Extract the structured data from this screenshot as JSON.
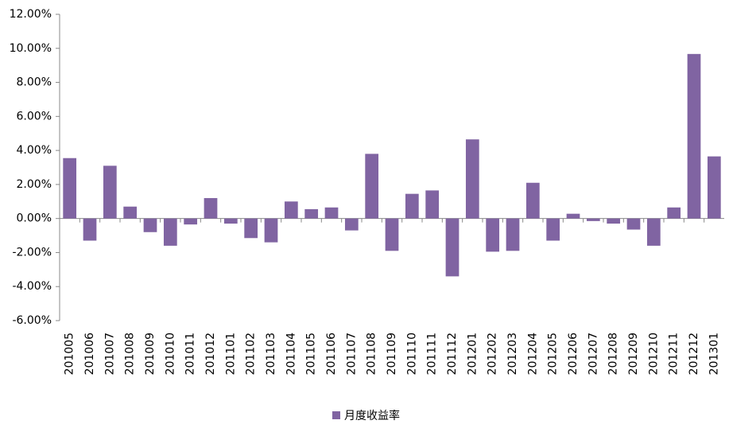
{
  "chart_data": {
    "type": "bar",
    "categories": [
      "201005",
      "201006",
      "201007",
      "201008",
      "201009",
      "201010",
      "201011",
      "201012",
      "201101",
      "201102",
      "201103",
      "201104",
      "201105",
      "201106",
      "201107",
      "201108",
      "201109",
      "201110",
      "201111",
      "201112",
      "201201",
      "201202",
      "201203",
      "201204",
      "201205",
      "201206",
      "201207",
      "201208",
      "201209",
      "201210",
      "201211",
      "201212",
      "201301"
    ],
    "series": [
      {
        "name": "月度收益率",
        "color": "#8064a2",
        "values": [
          3.55,
          -1.3,
          3.1,
          0.7,
          -0.8,
          -1.6,
          -0.35,
          1.2,
          -0.3,
          -1.15,
          -1.4,
          1.0,
          0.55,
          0.65,
          -0.7,
          3.8,
          -1.9,
          1.45,
          1.65,
          -3.4,
          4.65,
          -1.95,
          -1.9,
          2.1,
          -1.3,
          0.28,
          -0.15,
          -0.3,
          -0.65,
          -1.6,
          0.65,
          9.67,
          3.65
        ]
      }
    ],
    "ylim": [
      -6,
      12
    ],
    "yticks": [
      {
        "value": -6,
        "label": "-6.00%"
      },
      {
        "value": -4,
        "label": "-4.00%"
      },
      {
        "value": -2,
        "label": "-2.00%"
      },
      {
        "value": 0,
        "label": "0.00%"
      },
      {
        "value": 2,
        "label": "2.00%"
      },
      {
        "value": 4,
        "label": "4.00%"
      },
      {
        "value": 6,
        "label": "6.00%"
      },
      {
        "value": 8,
        "label": "8.00%"
      },
      {
        "value": 10,
        "label": "10.00%"
      },
      {
        "value": 12,
        "label": "12.00%"
      }
    ],
    "grid": false,
    "legend": "bottom"
  }
}
